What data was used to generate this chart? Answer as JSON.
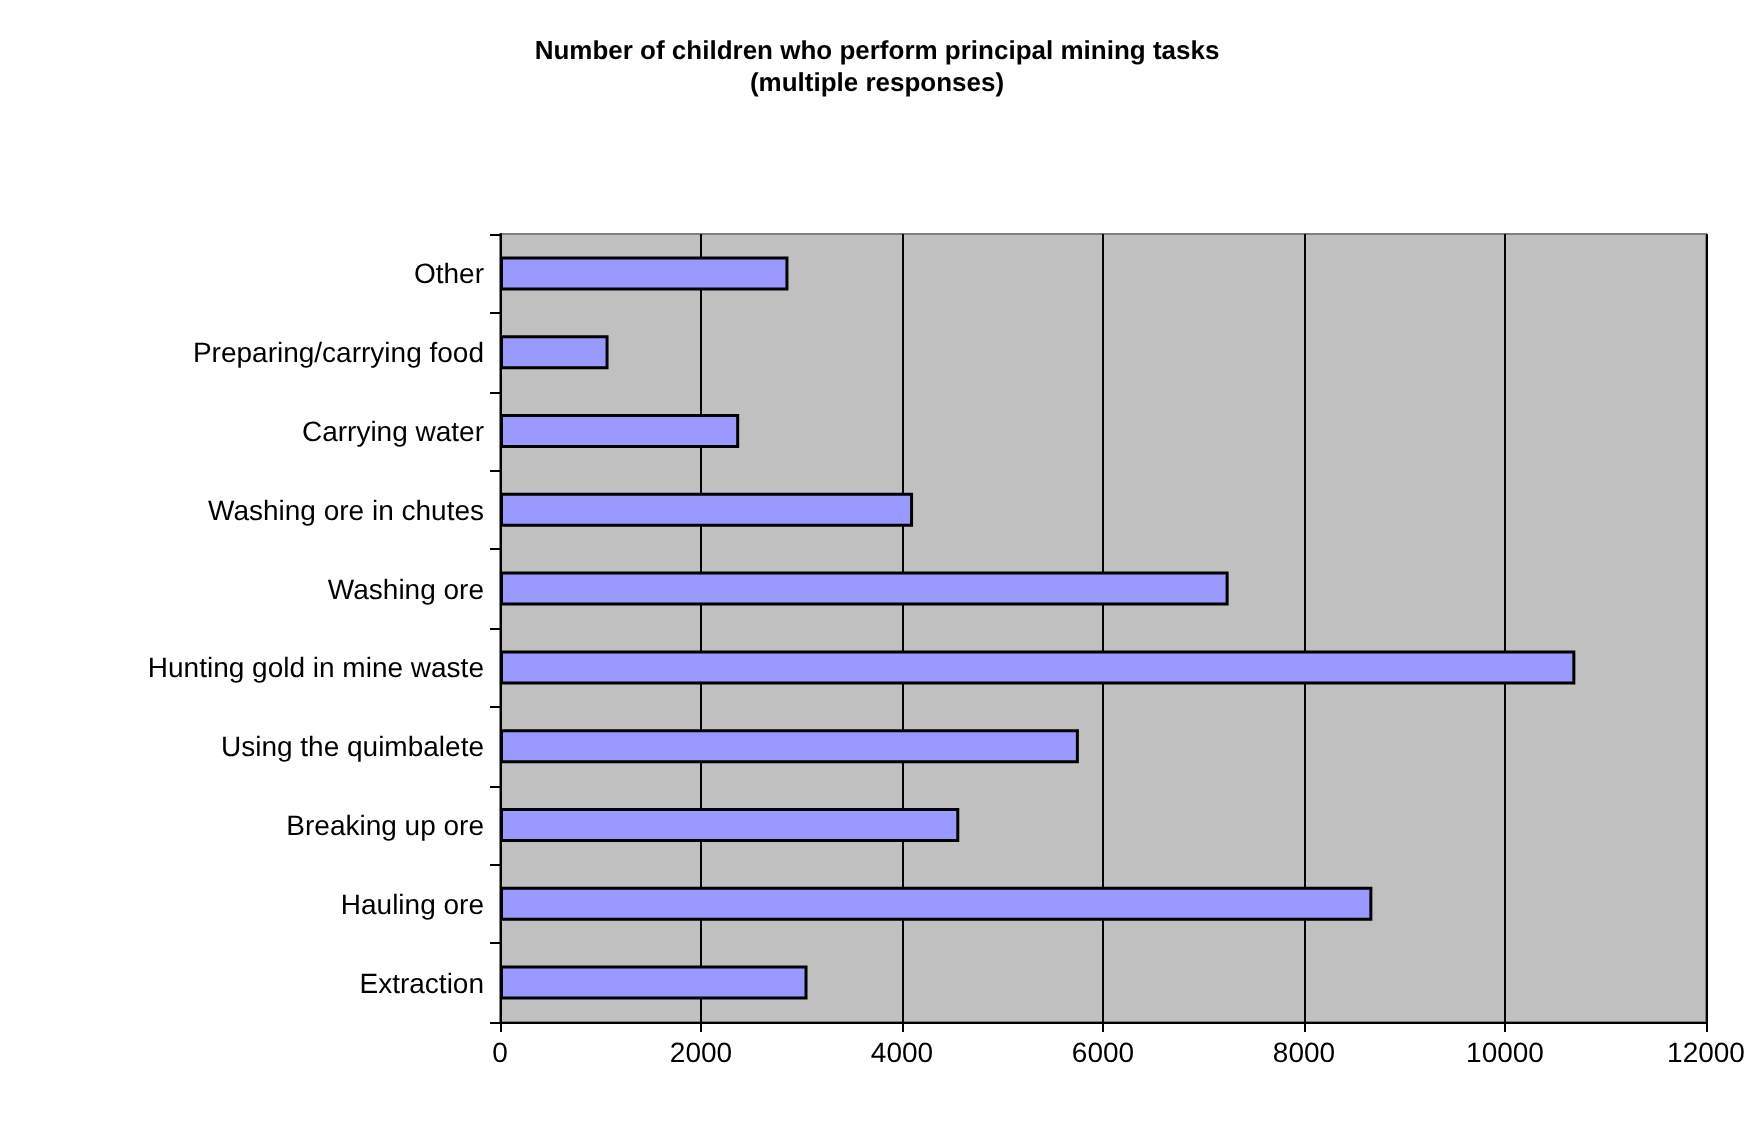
{
  "chart_data": {
    "type": "bar",
    "orientation": "horizontal",
    "title": "Number of children who perform principal mining tasks\n(multiple responses)",
    "categories": [
      "Other",
      "Preparing/carrying food",
      "Carrying water",
      "Washing ore in chutes",
      "Washing ore",
      "Hunting gold in mine waste",
      "Using the quimbalete",
      "Breaking up ore",
      "Hauling ore",
      "Extraction"
    ],
    "values": [
      2870,
      1080,
      2380,
      4110,
      7250,
      10700,
      5760,
      4570,
      8680,
      3060
    ],
    "color": "#9999ff",
    "xlim": [
      0,
      12000
    ],
    "xticks": [
      0,
      2000,
      4000,
      6000,
      8000,
      10000,
      12000
    ],
    "grid": "x"
  }
}
